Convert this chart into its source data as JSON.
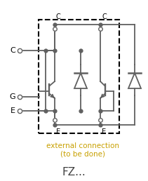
{
  "title": "FZ...",
  "subtitle_line1": "external connection",
  "subtitle_line2": "(to be done)",
  "label_C_ext": "C",
  "label_G_ext": "G",
  "label_E_ext": "E",
  "label_C_inner_left": "C",
  "label_E_inner_left": "E",
  "label_C_inner_right": "C",
  "label_E_inner_right": "E",
  "line_color": "#606060",
  "dashed_box_color": "#000000",
  "text_color_black": "#000000",
  "text_color_external": "#c8a000",
  "text_color_title": "#404040",
  "background_color": "#ffffff",
  "fig_width": 2.11,
  "fig_height": 2.58,
  "dpi": 100
}
